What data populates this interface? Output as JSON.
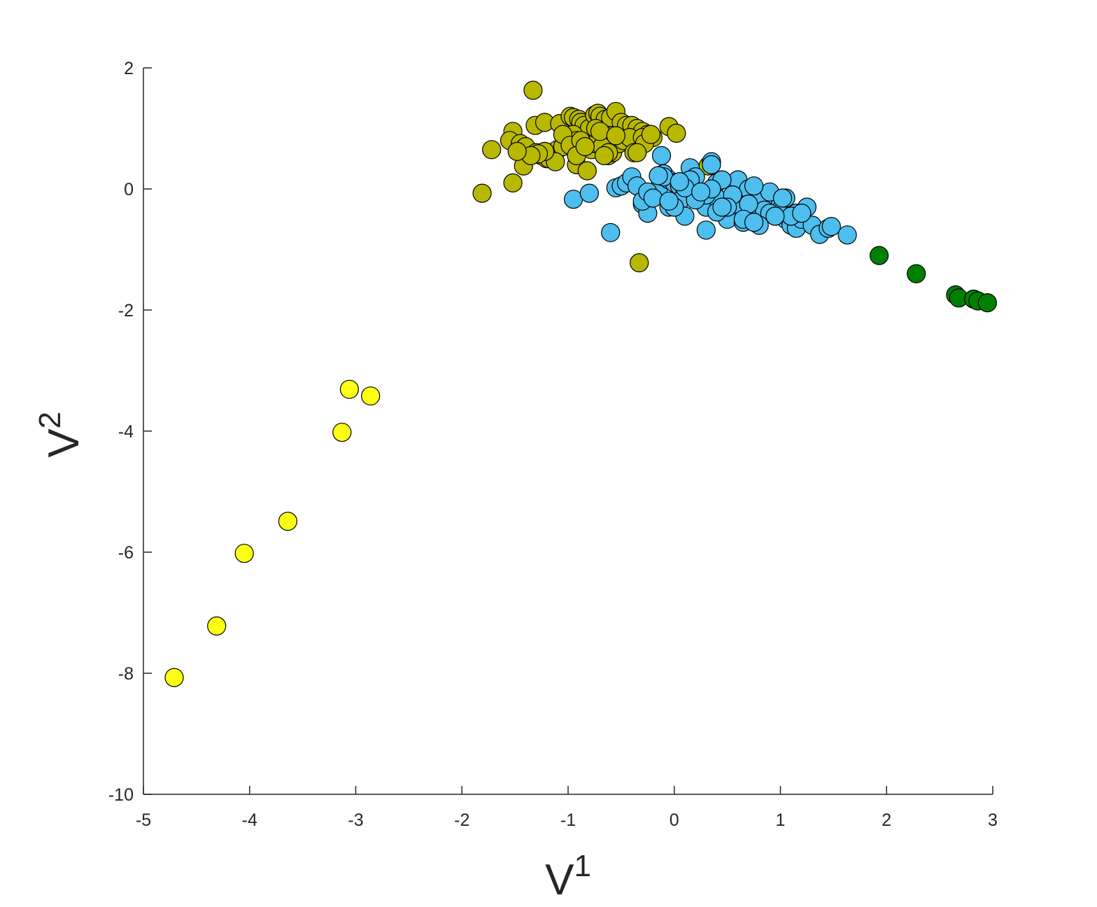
{
  "chart_data": {
    "type": "scatter",
    "title": "",
    "xlabel": "V",
    "xlabel_sup": "1",
    "ylabel": "V",
    "ylabel_sup": "2",
    "xlim": [
      -5,
      3
    ],
    "ylim": [
      -10,
      2
    ],
    "xticks": [
      -5,
      -4,
      -3,
      -2,
      -1,
      0,
      1,
      2,
      3
    ],
    "yticks": [
      -10,
      -8,
      -6,
      -4,
      -2,
      0,
      2
    ],
    "grid": false,
    "legend": "none",
    "series": [
      {
        "color": "#b8b800",
        "x": [
          -1.33,
          -1.31,
          -1.22,
          -1.08,
          -0.98,
          -0.95,
          -0.9,
          -0.88,
          -0.85,
          -0.8,
          -0.75,
          -0.72,
          -0.7,
          -0.65,
          -0.6,
          -0.55,
          -0.5,
          -0.45,
          -0.4,
          -0.35,
          -0.3,
          -0.25,
          -0.2,
          -0.05,
          0.02,
          -1.52,
          -1.55,
          -1.45,
          -1.4,
          -1.3,
          -1.25,
          -1.2,
          -1.15,
          -1.1,
          -1.05,
          -1.0,
          -0.95,
          -0.92,
          -0.85,
          -0.8,
          -0.78,
          -0.75,
          -0.72,
          -0.68,
          -0.62,
          -0.58,
          -0.52,
          -0.48,
          -0.42,
          -0.38,
          -0.3,
          -0.28,
          -0.22,
          -1.72,
          -1.81,
          -1.52,
          -1.42,
          -1.18,
          -1.12,
          -0.92,
          -0.82,
          -0.62,
          -0.35,
          -0.33,
          0.32,
          -1.22,
          -1.28,
          -1.05,
          -0.98,
          -0.88,
          -0.74,
          -0.7,
          -0.66,
          -0.55,
          -1.35,
          -1.48,
          -0.92,
          -0.84
        ],
        "y": [
          1.63,
          1.05,
          1.1,
          1.08,
          1.2,
          1.18,
          1.15,
          1.1,
          1.05,
          1.0,
          1.22,
          1.25,
          1.2,
          1.15,
          1.18,
          1.28,
          1.1,
          1.05,
          1.05,
          1.0,
          0.95,
          0.9,
          0.85,
          1.03,
          0.92,
          0.95,
          0.8,
          0.75,
          0.7,
          0.6,
          0.55,
          0.5,
          0.6,
          0.65,
          0.7,
          0.85,
          0.9,
          0.8,
          0.75,
          0.7,
          0.65,
          0.75,
          0.8,
          0.7,
          0.55,
          0.6,
          0.75,
          0.8,
          0.85,
          0.6,
          0.85,
          0.75,
          0.9,
          0.65,
          -0.07,
          0.1,
          0.38,
          0.5,
          0.45,
          0.4,
          0.3,
          0.6,
          0.6,
          -1.22,
          0.38,
          0.62,
          0.58,
          0.9,
          0.72,
          0.8,
          1.0,
          0.95,
          0.55,
          0.88,
          0.55,
          0.62,
          0.55,
          0.7
        ]
      },
      {
        "color": "#4dbeee",
        "x": [
          -0.95,
          -0.8,
          -0.6,
          -0.55,
          -0.5,
          -0.45,
          -0.4,
          -0.35,
          -0.3,
          -0.25,
          -0.2,
          -0.15,
          -0.12,
          -0.1,
          -0.05,
          0.0,
          0.05,
          0.1,
          0.15,
          0.2,
          0.25,
          0.3,
          0.35,
          0.4,
          0.45,
          0.5,
          0.55,
          0.6,
          0.65,
          0.7,
          0.75,
          0.8,
          0.85,
          0.9,
          0.95,
          1.0,
          1.05,
          1.1,
          1.15,
          1.2,
          1.25,
          1.3,
          1.37,
          1.45,
          1.48,
          1.63,
          -0.3,
          -0.25,
          -0.2,
          -0.1,
          -0.05,
          0.05,
          0.1,
          0.2,
          0.3,
          0.35,
          0.4,
          0.5,
          0.6,
          0.7,
          0.8,
          0.9,
          1.0,
          0.15,
          0.25,
          0.45,
          0.55,
          0.65,
          0.75,
          0.85,
          0.95,
          1.05,
          1.15,
          0.0,
          -0.15,
          0.3,
          0.2,
          0.5,
          0.7,
          0.9,
          1.1,
          0.1,
          0.4,
          0.8,
          1.2,
          -0.05,
          0.35,
          0.65,
          0.95,
          0.25,
          0.05,
          0.45,
          0.75,
          1.02
        ],
        "y": [
          -0.17,
          -0.07,
          -0.72,
          0.02,
          0.05,
          0.1,
          0.2,
          0.05,
          -0.25,
          -0.4,
          -0.1,
          0.0,
          0.55,
          0.25,
          0.15,
          0.1,
          0.05,
          0.0,
          0.35,
          0.2,
          -0.2,
          -0.3,
          0.45,
          0.1,
          -0.2,
          -0.35,
          -0.45,
          0.15,
          -0.4,
          -0.5,
          -0.3,
          -0.2,
          -0.1,
          -0.3,
          -0.4,
          -0.25,
          -0.5,
          -0.6,
          -0.65,
          -0.5,
          -0.3,
          -0.6,
          -0.75,
          -0.65,
          -0.62,
          -0.76,
          -0.2,
          -0.05,
          -0.15,
          0.2,
          -0.3,
          -0.2,
          -0.45,
          -0.15,
          -0.68,
          0.4,
          -0.15,
          -0.5,
          -0.25,
          0.0,
          -0.15,
          -0.05,
          -0.35,
          0.15,
          -0.05,
          0.15,
          -0.1,
          -0.55,
          0.05,
          -0.35,
          -0.45,
          -0.15,
          -0.4,
          -0.3,
          0.22,
          -0.1,
          -0.18,
          -0.3,
          -0.25,
          -0.4,
          -0.45,
          0.02,
          -0.38,
          -0.6,
          -0.4,
          -0.2,
          0.0,
          -0.5,
          -0.45,
          -0.05,
          0.12,
          -0.3,
          -0.55,
          -0.15
        ]
      },
      {
        "color": "#008000",
        "x": [
          1.93,
          2.28,
          2.65,
          2.68,
          2.82,
          2.86,
          2.95
        ],
        "y": [
          -1.1,
          -1.4,
          -1.75,
          -1.8,
          -1.82,
          -1.85,
          -1.88
        ]
      },
      {
        "color": "#ffff11",
        "x": [
          -4.71,
          -4.31,
          -4.05,
          -3.64,
          -3.13,
          -3.06,
          -2.86
        ],
        "y": [
          -8.07,
          -7.22,
          -6.02,
          -5.49,
          -4.02,
          -3.31,
          -3.42
        ]
      }
    ]
  }
}
